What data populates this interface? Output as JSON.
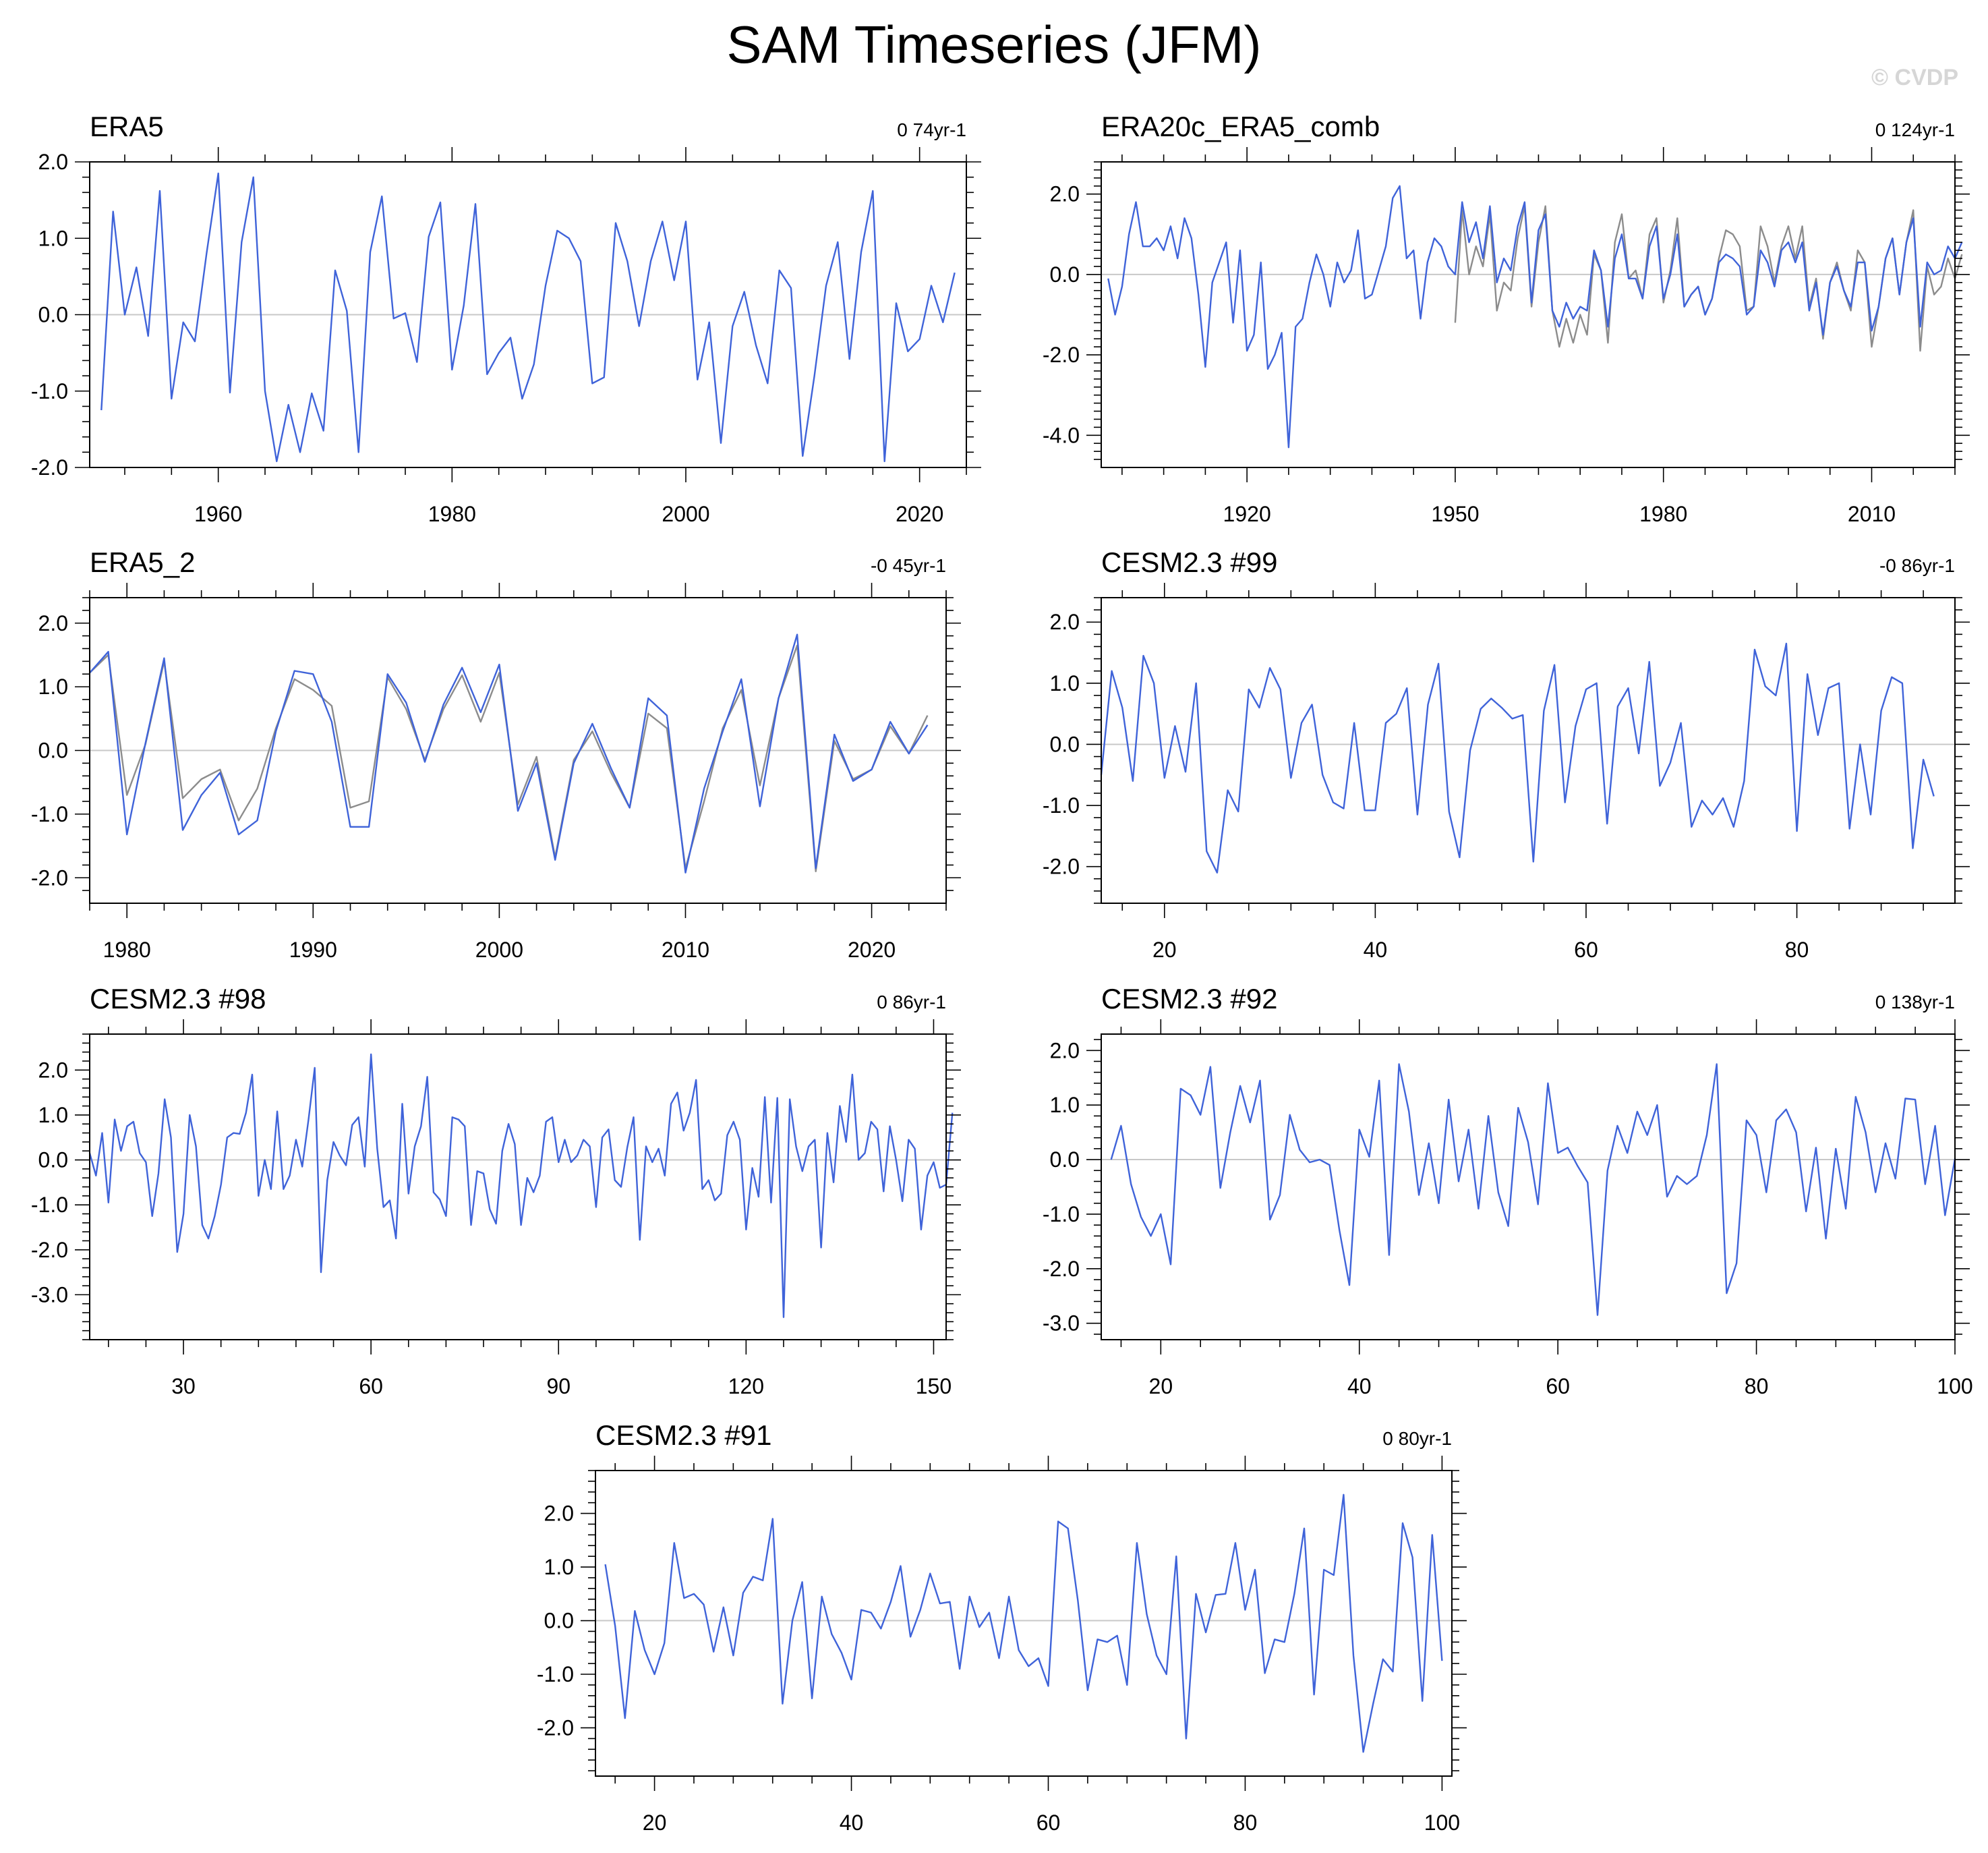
{
  "title": "SAM Timeseries (JFM)",
  "watermark": "© CVDP",
  "colors": {
    "series": "#3f63d9",
    "reference": "#8c8c8c",
    "zero_line": "#c8c8c8",
    "axis": "#000000"
  },
  "chart_data": [
    {
      "type": "line",
      "title": "ERA5",
      "trend": "0 74yr-1",
      "xlim": [
        1949,
        2024
      ],
      "ylim": [
        -2.0,
        2.0
      ],
      "xticks": [
        1960,
        1980,
        2000,
        2020
      ],
      "xtick_labels": [
        "1960",
        "1980",
        "2000",
        "2020"
      ],
      "yticks": [
        -2.0,
        -1.0,
        0.0,
        1.0,
        2.0
      ],
      "ytick_labels": [
        "-2.0",
        "-1.0",
        "0.0",
        "1.0",
        "2.0"
      ],
      "series": [
        {
          "x0": 1950,
          "values": [
            -1.25,
            1.35,
            0.0,
            0.62,
            -0.28,
            1.62,
            -1.1,
            -0.1,
            -0.35,
            0.8,
            1.85,
            -1.02,
            0.95,
            1.8,
            -1.0,
            -1.92,
            -1.18,
            -1.8,
            -1.03,
            -1.52,
            0.58,
            0.05,
            -1.8,
            0.82,
            1.55,
            -0.05,
            0.02,
            -0.62,
            1.02,
            1.47,
            -0.72,
            0.12,
            1.45,
            -0.78,
            -0.5,
            -0.3,
            -1.1,
            -0.65,
            0.38,
            1.1,
            1.0,
            0.7,
            -0.9,
            -0.82,
            1.2,
            0.7,
            -0.15,
            0.7,
            1.22,
            0.45,
            1.22,
            -0.85,
            -0.1,
            -1.68,
            -0.15,
            0.3,
            -0.4,
            -0.9,
            0.58,
            0.35,
            -1.85,
            -0.8,
            0.38,
            0.95,
            -0.58,
            0.82,
            1.62,
            -1.92,
            0.15,
            -0.48,
            -0.32,
            0.38,
            -0.1,
            0.55
          ]
        }
      ]
    },
    {
      "type": "line",
      "title": "ERA20c_ERA5_comb",
      "trend": "0 124yr-1",
      "xlim": [
        1899,
        2022
      ],
      "ylim": [
        -4.8,
        2.8
      ],
      "xticks": [
        1920,
        1950,
        1980,
        2010
      ],
      "xtick_labels": [
        "1920",
        "1950",
        "1980",
        "2010"
      ],
      "yticks": [
        -4.0,
        -2.0,
        0.0,
        2.0
      ],
      "ytick_labels": [
        "-4.0",
        "-2.0",
        "0.0",
        "2.0"
      ],
      "series": [
        {
          "x0": 1950,
          "reference": true,
          "values": [
            -1.2,
            1.6,
            0.0,
            0.7,
            0.2,
            1.5,
            -0.9,
            -0.2,
            -0.4,
            0.9,
            1.7,
            -0.8,
            0.8,
            1.7,
            -0.9,
            -1.8,
            -1.1,
            -1.7,
            -1.0,
            -1.5,
            0.5,
            0.1,
            -1.7,
            0.8,
            1.5,
            -0.1,
            0.1,
            -0.6,
            1.0,
            1.4,
            -0.7,
            0.1,
            1.4,
            -0.8,
            -0.5,
            -0.3,
            -1.0,
            -0.6,
            0.4,
            1.1,
            1.0,
            0.7,
            -0.9,
            -0.8,
            1.2,
            0.7,
            -0.2,
            0.7,
            1.2,
            0.4,
            1.2,
            -0.8,
            -0.1,
            -1.6,
            -0.2,
            0.3,
            -0.4,
            -0.9,
            0.6,
            0.3,
            -1.8,
            -0.8,
            0.4,
            0.9,
            -0.5,
            0.8,
            1.6,
            -1.9,
            0.2,
            -0.5,
            -0.3,
            0.4,
            -0.1,
            0.5
          ]
        },
        {
          "x0": 1900,
          "values": [
            -0.1,
            -1.0,
            -0.3,
            1.0,
            1.8,
            0.7,
            0.7,
            0.9,
            0.6,
            1.2,
            0.4,
            1.4,
            0.9,
            -0.5,
            -2.3,
            -0.2,
            0.3,
            0.8,
            -1.2,
            0.6,
            -1.9,
            -1.5,
            0.3,
            -2.35,
            -2.0,
            -1.45,
            -4.3,
            -1.3,
            -1.1,
            -0.2,
            0.5,
            0.0,
            -0.8,
            0.3,
            -0.2,
            0.1,
            1.1,
            -0.6,
            -0.5,
            0.1,
            0.7,
            1.9,
            2.2,
            0.4,
            0.6,
            -1.1,
            0.3,
            0.9,
            0.7,
            0.2,
            0.0,
            1.8,
            0.8,
            1.3,
            0.4,
            1.7,
            -0.2,
            0.4,
            0.1,
            1.2,
            1.8,
            -0.7,
            1.1,
            1.5,
            -0.9,
            -1.3,
            -0.7,
            -1.1,
            -0.8,
            -0.9,
            0.6,
            0.1,
            -1.3,
            0.4,
            1.0,
            -0.1,
            -0.1,
            -0.6,
            0.7,
            1.2,
            -0.6,
            0.0,
            1.0,
            -0.8,
            -0.5,
            -0.3,
            -1.0,
            -0.6,
            0.3,
            0.5,
            0.4,
            0.2,
            -1.0,
            -0.8,
            0.6,
            0.3,
            -0.3,
            0.6,
            0.8,
            0.3,
            0.8,
            -0.9,
            -0.2,
            -1.5,
            -0.2,
            0.2,
            -0.4,
            -0.8,
            0.3,
            0.3,
            -1.4,
            -0.8,
            0.4,
            0.9,
            -0.5,
            0.8,
            1.4,
            -1.3,
            0.3,
            0.0,
            0.1,
            0.7,
            0.4,
            0.8
          ]
        }
      ]
    },
    {
      "type": "line",
      "title": "ERA5_2",
      "trend": "-0 45yr-1",
      "xlim": [
        1978,
        2024
      ],
      "ylim": [
        -2.4,
        2.4
      ],
      "xticks": [
        1980,
        1990,
        2000,
        2010,
        2020
      ],
      "xtick_labels": [
        "1980",
        "1990",
        "2000",
        "2010",
        "2020"
      ],
      "yticks": [
        -2.0,
        -1.0,
        0.0,
        1.0,
        2.0
      ],
      "ytick_labels": [
        "-2.0",
        "-1.0",
        "0.0",
        "1.0",
        "2.0"
      ],
      "series": [
        {
          "x0": 1978,
          "reference": true,
          "values": [
            1.22,
            1.5,
            -0.7,
            0.1,
            1.4,
            -0.75,
            -0.45,
            -0.3,
            -1.1,
            -0.6,
            0.35,
            1.12,
            0.95,
            0.7,
            -0.9,
            -0.8,
            1.15,
            0.65,
            -0.15,
            0.65,
            1.18,
            0.45,
            1.22,
            -0.85,
            -0.1,
            -1.68,
            -0.15,
            0.3,
            -0.35,
            -0.9,
            0.58,
            0.35,
            -1.85,
            -0.8,
            0.35,
            0.95,
            -0.55,
            0.82,
            1.65,
            -1.9,
            0.15,
            -0.45,
            -0.3,
            0.38,
            -0.05,
            0.55
          ]
        },
        {
          "x0": 1978,
          "values": [
            1.22,
            1.55,
            -1.32,
            0.12,
            1.45,
            -1.25,
            -0.7,
            -0.35,
            -1.32,
            -1.1,
            0.3,
            1.25,
            1.2,
            0.45,
            -1.2,
            -1.2,
            1.2,
            0.75,
            -0.18,
            0.72,
            1.3,
            0.6,
            1.35,
            -0.95,
            -0.2,
            -1.72,
            -0.2,
            0.42,
            -0.28,
            -0.9,
            0.82,
            0.55,
            -1.92,
            -0.6,
            0.3,
            1.12,
            -0.88,
            0.82,
            1.82,
            -1.85,
            0.25,
            -0.48,
            -0.3,
            0.45,
            -0.05,
            0.4
          ]
        }
      ]
    },
    {
      "type": "line",
      "title": "CESM2.3 #99",
      "trend": "-0 86yr-1",
      "xlim": [
        14,
        95
      ],
      "ylim": [
        -2.6,
        2.4
      ],
      "xticks": [
        20,
        40,
        60,
        80
      ],
      "xtick_labels": [
        "20",
        "40",
        "60",
        "80"
      ],
      "yticks": [
        -2.0,
        -1.0,
        0.0,
        1.0,
        2.0
      ],
      "ytick_labels": [
        "-2.0",
        "-1.0",
        "0.0",
        "1.0",
        "2.0"
      ],
      "series": [
        {
          "x0": 14,
          "values": [
            -0.5,
            1.2,
            0.6,
            -0.6,
            1.45,
            1.0,
            -0.55,
            0.3,
            -0.45,
            1.0,
            -1.75,
            -2.1,
            -0.75,
            -1.1,
            0.9,
            0.6,
            1.25,
            0.9,
            -0.55,
            0.35,
            0.65,
            -0.5,
            -0.95,
            -1.05,
            0.35,
            -1.08,
            -1.08,
            0.35,
            0.5,
            0.92,
            -1.15,
            0.65,
            1.32,
            -1.1,
            -1.85,
            -0.1,
            0.58,
            0.75,
            0.6,
            0.42,
            0.48,
            -1.92,
            0.55,
            1.3,
            -0.95,
            0.3,
            0.9,
            1.0,
            -1.3,
            0.62,
            0.92,
            -0.15,
            1.35,
            -0.68,
            -0.3,
            0.35,
            -1.35,
            -0.92,
            -1.15,
            -0.88,
            -1.35,
            -0.6,
            1.55,
            0.95,
            0.8,
            1.65,
            -1.42,
            1.15,
            0.15,
            0.92,
            1.0,
            -1.38,
            0.0,
            -1.15,
            0.55,
            1.1,
            1.0,
            -1.7,
            -0.25,
            -0.85
          ]
        }
      ]
    },
    {
      "type": "line",
      "title": "CESM2.3 #98",
      "trend": "0 86yr-1",
      "xlim": [
        15,
        152
      ],
      "ylim": [
        -4.0,
        2.8
      ],
      "xticks": [
        30,
        60,
        90,
        120,
        150
      ],
      "xtick_labels": [
        "30",
        "60",
        "90",
        "120",
        "150"
      ],
      "yticks": [
        -3.0,
        -2.0,
        -1.0,
        0.0,
        1.0,
        2.0
      ],
      "ytick_labels": [
        "-3.0",
        "-2.0",
        "-1.0",
        "0.0",
        "1.0",
        "2.0"
      ],
      "series": [
        {
          "x0": 15,
          "values": [
            0.15,
            -0.35,
            0.6,
            -0.95,
            0.9,
            0.2,
            0.75,
            0.85,
            0.15,
            -0.05,
            -1.25,
            -0.3,
            1.35,
            0.5,
            -2.05,
            -1.2,
            1.0,
            0.3,
            -1.45,
            -1.75,
            -1.25,
            -0.55,
            0.5,
            0.6,
            0.58,
            1.05,
            1.9,
            -0.8,
            0.0,
            -0.65,
            1.08,
            -0.65,
            -0.35,
            0.45,
            -0.15,
            0.9,
            2.05,
            -2.5,
            -0.45,
            0.4,
            0.1,
            -0.12,
            0.78,
            0.95,
            -0.15,
            2.35,
            0.25,
            -1.05,
            -0.9,
            -1.75,
            1.25,
            -0.75,
            0.3,
            0.75,
            1.85,
            -0.72,
            -0.88,
            -1.25,
            0.95,
            0.9,
            0.75,
            -1.45,
            -0.25,
            -0.3,
            -1.1,
            -1.42,
            0.2,
            0.8,
            0.35,
            -1.45,
            -0.4,
            -0.72,
            -0.35,
            0.85,
            0.95,
            -0.05,
            0.45,
            -0.05,
            0.1,
            0.45,
            0.3,
            -1.05,
            0.5,
            0.68,
            -0.45,
            -0.6,
            0.28,
            0.95,
            -1.78,
            0.3,
            -0.05,
            0.25,
            -0.35,
            1.25,
            1.5,
            0.65,
            1.05,
            1.78,
            -0.65,
            -0.45,
            -0.9,
            -0.75,
            0.55,
            0.85,
            0.45,
            -1.55,
            -0.18,
            -0.82,
            1.4,
            -0.95,
            1.38,
            -3.5,
            1.35,
            0.3,
            -0.25,
            0.3,
            0.45,
            -1.95,
            0.6,
            -0.5,
            1.2,
            0.4,
            1.9,
            0.0,
            0.15,
            0.85,
            0.68,
            -0.7,
            0.75,
            0.0,
            -0.92,
            0.45,
            0.25,
            -1.55,
            -0.35,
            -0.05,
            -0.62,
            -0.55,
            1.05
          ]
        }
      ]
    },
    {
      "type": "line",
      "title": "CESM2.3 #92",
      "trend": "0 138yr-1",
      "xlim": [
        14,
        100
      ],
      "ylim": [
        -3.3,
        2.3
      ],
      "xticks": [
        20,
        40,
        60,
        80,
        100
      ],
      "xtick_labels": [
        "20",
        "40",
        "60",
        "80",
        "100"
      ],
      "yticks": [
        -3.0,
        -2.0,
        -1.0,
        0.0,
        1.0,
        2.0
      ],
      "ytick_labels": [
        "-3.0",
        "-2.0",
        "-1.0",
        "0.0",
        "1.0",
        "2.0"
      ],
      "series": [
        {
          "x0": 15,
          "values": [
            0.0,
            0.62,
            -0.45,
            -1.05,
            -1.4,
            -1.0,
            -1.92,
            1.3,
            1.18,
            0.82,
            1.7,
            -0.52,
            0.5,
            1.35,
            0.68,
            1.45,
            -1.1,
            -0.65,
            0.82,
            0.18,
            -0.05,
            0.0,
            -0.1,
            -1.3,
            -2.3,
            0.55,
            0.05,
            1.45,
            -1.75,
            1.75,
            0.88,
            -0.65,
            0.3,
            -0.8,
            1.1,
            -0.4,
            0.55,
            -0.9,
            0.8,
            -0.6,
            -1.22,
            0.95,
            0.32,
            -0.82,
            1.4,
            0.12,
            0.22,
            -0.12,
            -0.42,
            -2.85,
            -0.2,
            0.62,
            0.12,
            0.88,
            0.45,
            1.0,
            -0.68,
            -0.3,
            -0.45,
            -0.3,
            0.45,
            1.75,
            -2.45,
            -1.9,
            0.72,
            0.45,
            -0.6,
            0.72,
            0.92,
            0.5,
            -0.95,
            0.22,
            -1.45,
            0.2,
            -0.9,
            1.15,
            0.5,
            -0.6,
            0.3,
            -0.35,
            1.12,
            1.1,
            -0.45,
            0.62,
            -1.02,
            0.02
          ]
        }
      ]
    },
    {
      "type": "line",
      "title": "CESM2.3 #91",
      "trend": "0 80yr-1",
      "xlim": [
        14,
        101
      ],
      "ylim": [
        -2.9,
        2.8
      ],
      "xticks": [
        20,
        40,
        60,
        80,
        100
      ],
      "xtick_labels": [
        "20",
        "40",
        "60",
        "80",
        "100"
      ],
      "yticks": [
        -2.0,
        -1.0,
        0.0,
        1.0,
        2.0
      ],
      "ytick_labels": [
        "-2.0",
        "-1.0",
        "0.0",
        "1.0",
        "2.0"
      ],
      "series": [
        {
          "x0": 15,
          "values": [
            1.05,
            -0.1,
            -1.82,
            0.18,
            -0.55,
            -1.0,
            -0.42,
            1.45,
            0.42,
            0.5,
            0.3,
            -0.58,
            0.25,
            -0.65,
            0.52,
            0.82,
            0.75,
            1.9,
            -1.55,
            0.0,
            0.72,
            -1.45,
            0.45,
            -0.25,
            -0.6,
            -1.1,
            0.2,
            0.15,
            -0.15,
            0.35,
            1.02,
            -0.3,
            0.2,
            0.88,
            0.32,
            0.35,
            -0.9,
            0.45,
            -0.12,
            0.15,
            -0.7,
            0.45,
            -0.55,
            -0.85,
            -0.7,
            -1.22,
            1.85,
            1.72,
            0.38,
            -1.3,
            -0.35,
            -0.4,
            -0.28,
            -1.2,
            1.45,
            0.12,
            -0.65,
            -1.0,
            1.2,
            -2.2,
            0.5,
            -0.22,
            0.48,
            0.5,
            1.45,
            0.2,
            0.95,
            -0.98,
            -0.35,
            -0.4,
            0.5,
            1.72,
            -1.38,
            0.95,
            0.85,
            2.35,
            -0.65,
            -2.45,
            -1.55,
            -0.72,
            -0.95,
            1.82,
            1.18,
            -1.5,
            1.6,
            -0.75
          ]
        }
      ]
    }
  ]
}
